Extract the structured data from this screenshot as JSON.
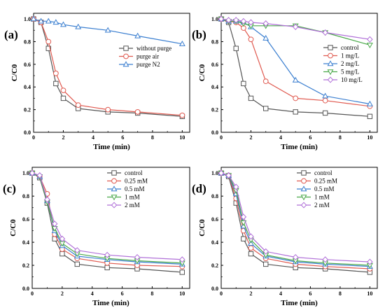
{
  "chart_data": [
    {
      "panel": "(a)",
      "type": "line",
      "xlabel": "Time (min)",
      "ylabel": "C/C0",
      "xlim": [
        0,
        10.5
      ],
      "ylim": [
        0,
        1.0
      ],
      "x_ticks": [
        "0",
        "2",
        "4",
        "6",
        "8",
        "10"
      ],
      "y_ticks": [
        "0.0",
        "0.2",
        "0.4",
        "0.6",
        "0.8",
        "1.0"
      ],
      "legend_position": "right",
      "x": [
        0,
        0.5,
        1,
        1.5,
        2,
        3,
        5,
        7,
        10
      ],
      "series": [
        {
          "name": "without purge",
          "marker": "square",
          "color": "#555555",
          "values": [
            1.0,
            0.97,
            0.74,
            0.43,
            0.3,
            0.21,
            0.18,
            0.17,
            0.14
          ]
        },
        {
          "name": "purge air",
          "marker": "circle",
          "color": "#e05a50",
          "values": [
            1.0,
            0.97,
            0.8,
            0.52,
            0.37,
            0.24,
            0.2,
            0.18,
            0.15
          ]
        },
        {
          "name": "purge N2",
          "marker": "triangle",
          "color": "#3b7fd0",
          "values": [
            1.0,
            0.98,
            0.98,
            0.97,
            0.95,
            0.93,
            0.9,
            0.85,
            0.78
          ]
        }
      ]
    },
    {
      "panel": "(b)",
      "type": "line",
      "xlabel": "Time (min)",
      "ylabel": "C/C0",
      "xlim": [
        0,
        10.5
      ],
      "ylim": [
        0,
        1.0
      ],
      "x_ticks": [
        "0",
        "2",
        "4",
        "6",
        "8",
        "10"
      ],
      "y_ticks": [
        "0.0",
        "0.2",
        "0.4",
        "0.6",
        "0.8",
        "1.0"
      ],
      "legend_position": "right",
      "x": [
        0,
        0.5,
        1,
        1.5,
        2,
        3,
        5,
        7,
        10
      ],
      "series": [
        {
          "name": "control",
          "marker": "square",
          "color": "#555555",
          "values": [
            1.0,
            0.97,
            0.74,
            0.43,
            0.3,
            0.21,
            0.18,
            0.17,
            0.14
          ]
        },
        {
          "name": "1 mg/L",
          "marker": "circle",
          "color": "#e05a50",
          "values": [
            1.0,
            0.98,
            0.97,
            0.92,
            0.82,
            0.45,
            0.3,
            0.28,
            0.23
          ]
        },
        {
          "name": "2 mg/L",
          "marker": "triangle",
          "color": "#3b7fd0",
          "values": [
            1.0,
            0.98,
            0.98,
            0.97,
            0.93,
            0.83,
            0.46,
            0.32,
            0.25
          ]
        },
        {
          "name": "5 mg/L",
          "marker": "triangle-down",
          "color": "#4aa84a",
          "values": [
            1.0,
            0.98,
            0.98,
            0.96,
            0.94,
            0.94,
            0.94,
            0.88,
            0.77
          ]
        },
        {
          "name": "10 mg/L",
          "marker": "diamond",
          "color": "#b070d8",
          "values": [
            1.0,
            0.99,
            0.99,
            0.98,
            0.97,
            0.96,
            0.93,
            0.88,
            0.82
          ]
        }
      ]
    },
    {
      "panel": "(c)",
      "type": "line",
      "xlabel": "Time (min)",
      "ylabel": "C/C0",
      "xlim": [
        0,
        10.5
      ],
      "ylim": [
        0,
        1.0
      ],
      "x_ticks": [
        "0",
        "2",
        "4",
        "6",
        "8",
        "10"
      ],
      "y_ticks": [
        "0.0",
        "0.2",
        "0.4",
        "0.6",
        "0.8",
        "1.0"
      ],
      "legend_position": "right",
      "x": [
        0,
        0.5,
        1,
        1.5,
        2,
        3,
        5,
        7,
        10
      ],
      "series": [
        {
          "name": "control",
          "marker": "square",
          "color": "#555555",
          "values": [
            1.0,
            0.96,
            0.74,
            0.43,
            0.3,
            0.21,
            0.18,
            0.17,
            0.14
          ]
        },
        {
          "name": "0.25 mM",
          "marker": "circle",
          "color": "#e05a50",
          "values": [
            1.0,
            0.97,
            0.82,
            0.47,
            0.34,
            0.26,
            0.22,
            0.2,
            0.19
          ]
        },
        {
          "name": "0.5 mM",
          "marker": "triangle",
          "color": "#3b7fd0",
          "values": [
            1.0,
            0.97,
            0.76,
            0.5,
            0.37,
            0.28,
            0.25,
            0.23,
            0.21
          ]
        },
        {
          "name": "1 mM",
          "marker": "triangle-down",
          "color": "#4aa84a",
          "values": [
            1.0,
            0.97,
            0.75,
            0.52,
            0.39,
            0.3,
            0.26,
            0.24,
            0.22
          ]
        },
        {
          "name": "2 mM",
          "marker": "diamond",
          "color": "#b070d8",
          "values": [
            1.0,
            0.98,
            0.77,
            0.56,
            0.43,
            0.33,
            0.29,
            0.27,
            0.25
          ]
        }
      ]
    },
    {
      "panel": "(d)",
      "type": "line",
      "xlabel": "Time (min)",
      "ylabel": "C/C0",
      "xlim": [
        0,
        10.5
      ],
      "ylim": [
        0,
        1.0
      ],
      "x_ticks": [
        "0",
        "2",
        "4",
        "6",
        "8",
        "10"
      ],
      "y_ticks": [
        "0.0",
        "0.2",
        "0.4",
        "0.6",
        "0.8",
        "1.0"
      ],
      "legend_position": "right",
      "x": [
        0,
        0.5,
        1,
        1.5,
        2,
        3,
        5,
        7,
        10
      ],
      "series": [
        {
          "name": "control",
          "marker": "square",
          "color": "#555555",
          "values": [
            1.0,
            0.97,
            0.74,
            0.43,
            0.3,
            0.21,
            0.18,
            0.17,
            0.14
          ]
        },
        {
          "name": "0.25 mM",
          "marker": "circle",
          "color": "#e05a50",
          "values": [
            1.0,
            0.98,
            0.78,
            0.5,
            0.35,
            0.26,
            0.21,
            0.19,
            0.17
          ]
        },
        {
          "name": "0.5 mM",
          "marker": "triangle",
          "color": "#3b7fd0",
          "values": [
            1.0,
            0.98,
            0.82,
            0.54,
            0.39,
            0.28,
            0.23,
            0.21,
            0.19
          ]
        },
        {
          "name": "1 mM",
          "marker": "triangle-down",
          "color": "#4aa84a",
          "values": [
            1.0,
            0.98,
            0.85,
            0.57,
            0.42,
            0.29,
            0.24,
            0.22,
            0.2
          ]
        },
        {
          "name": "2 mM",
          "marker": "diamond",
          "color": "#b070d8",
          "values": [
            1.0,
            0.98,
            0.88,
            0.62,
            0.45,
            0.32,
            0.27,
            0.25,
            0.23
          ]
        }
      ]
    }
  ]
}
